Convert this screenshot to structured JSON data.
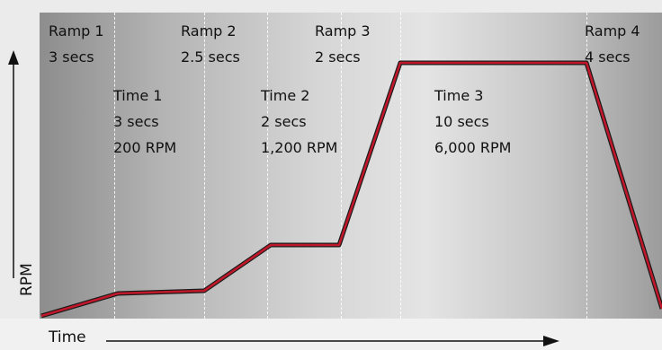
{
  "axes": {
    "y_label": "RPM",
    "x_label": "Time"
  },
  "ramps": [
    {
      "name": "Ramp 1",
      "duration": "3 secs"
    },
    {
      "name": "Ramp 2",
      "duration": "2.5 secs"
    },
    {
      "name": "Ramp 3",
      "duration": "2 secs"
    },
    {
      "name": "Ramp 4",
      "duration": "4 secs"
    }
  ],
  "holds": [
    {
      "name": "Time 1",
      "duration": "3 secs",
      "speed": "200 RPM"
    },
    {
      "name": "Time 2",
      "duration": "2 secs",
      "speed": "1,200 RPM"
    },
    {
      "name": "Time 3",
      "duration": "10 secs",
      "speed": "6,000 RPM"
    }
  ],
  "colors": {
    "profile_line": "#c0182a",
    "profile_edge": "#1a1a1a",
    "dividers": "#ffffff"
  }
}
